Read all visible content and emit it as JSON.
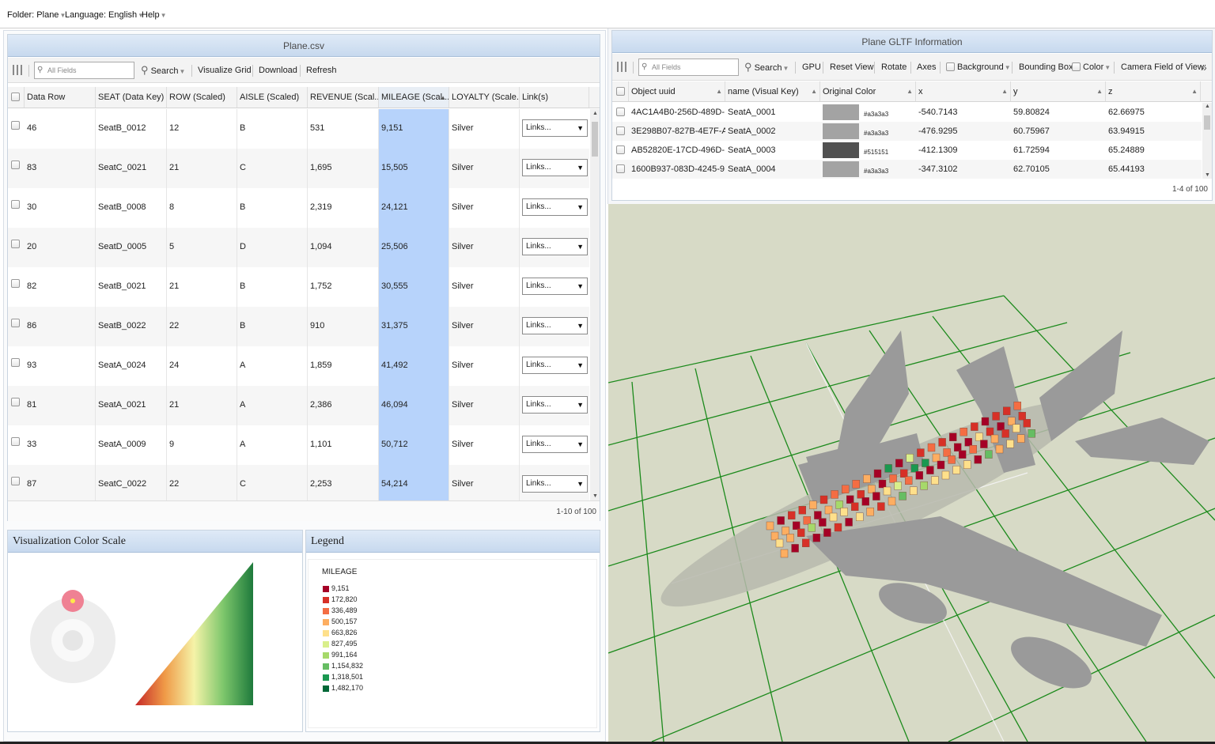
{
  "menubar": {
    "folder": "Folder: Plane",
    "language": "Language: English",
    "help": "Help"
  },
  "csv_panel": {
    "title": "Plane.csv",
    "toolbar": {
      "search_placeholder": "All Fields",
      "search": "Search",
      "visualize": "Visualize Grid",
      "download": "Download",
      "refresh": "Refresh"
    },
    "columns": [
      "Data Row",
      "SEAT (Data Key)",
      "ROW (Scaled)",
      "AISLE (Scaled)",
      "REVENUE (Scal...",
      "MILEAGE (Scal...",
      "LOYALTY (Scale...",
      "Link(s)"
    ],
    "rows": [
      {
        "data_row": "46",
        "seat": "SeatB_0012",
        "row": "12",
        "aisle": "B",
        "revenue": "531",
        "mileage": "9,151",
        "loyalty": "Silver",
        "links": "Links..."
      },
      {
        "data_row": "83",
        "seat": "SeatC_0021",
        "row": "21",
        "aisle": "C",
        "revenue": "1,695",
        "mileage": "15,505",
        "loyalty": "Silver",
        "links": "Links..."
      },
      {
        "data_row": "30",
        "seat": "SeatB_0008",
        "row": "8",
        "aisle": "B",
        "revenue": "2,319",
        "mileage": "24,121",
        "loyalty": "Silver",
        "links": "Links..."
      },
      {
        "data_row": "20",
        "seat": "SeatD_0005",
        "row": "5",
        "aisle": "D",
        "revenue": "1,094",
        "mileage": "25,506",
        "loyalty": "Silver",
        "links": "Links..."
      },
      {
        "data_row": "82",
        "seat": "SeatB_0021",
        "row": "21",
        "aisle": "B",
        "revenue": "1,752",
        "mileage": "30,555",
        "loyalty": "Silver",
        "links": "Links..."
      },
      {
        "data_row": "86",
        "seat": "SeatB_0022",
        "row": "22",
        "aisle": "B",
        "revenue": "910",
        "mileage": "31,375",
        "loyalty": "Silver",
        "links": "Links..."
      },
      {
        "data_row": "93",
        "seat": "SeatA_0024",
        "row": "24",
        "aisle": "A",
        "revenue": "1,859",
        "mileage": "41,492",
        "loyalty": "Silver",
        "links": "Links..."
      },
      {
        "data_row": "81",
        "seat": "SeatA_0021",
        "row": "21",
        "aisle": "A",
        "revenue": "2,386",
        "mileage": "46,094",
        "loyalty": "Silver",
        "links": "Links..."
      },
      {
        "data_row": "33",
        "seat": "SeatA_0009",
        "row": "9",
        "aisle": "A",
        "revenue": "1,101",
        "mileage": "50,712",
        "loyalty": "Silver",
        "links": "Links..."
      },
      {
        "data_row": "87",
        "seat": "SeatC_0022",
        "row": "22",
        "aisle": "C",
        "revenue": "2,253",
        "mileage": "54,214",
        "loyalty": "Silver",
        "links": "Links..."
      }
    ],
    "pager": "1-10 of 100"
  },
  "color_scale_panel": {
    "title": "Visualization Color Scale"
  },
  "legend_panel": {
    "title": "Legend",
    "field": "MILEAGE",
    "entries": [
      {
        "label": "9,151",
        "color": "#a50026"
      },
      {
        "label": "172,820",
        "color": "#d73027"
      },
      {
        "label": "336,489",
        "color": "#f46d43"
      },
      {
        "label": "500,157",
        "color": "#fdae61"
      },
      {
        "label": "663,826",
        "color": "#fee08b"
      },
      {
        "label": "827,495",
        "color": "#d9ef8b"
      },
      {
        "label": "991,164",
        "color": "#a6d96a"
      },
      {
        "label": "1,154,832",
        "color": "#66bd63"
      },
      {
        "label": "1,318,501",
        "color": "#1a9850"
      },
      {
        "label": "1,482,170",
        "color": "#006837"
      }
    ]
  },
  "gltf_panel": {
    "title": "Plane GLTF Information",
    "toolbar": {
      "search_placeholder": "All Fields",
      "search": "Search",
      "gpu": "GPU",
      "reset_view": "Reset View",
      "rotate": "Rotate",
      "axes": "Axes",
      "background": "Background",
      "bounding_box": "Bounding Box",
      "color": "Color",
      "camera": "Camera Field of View:"
    },
    "columns": [
      "Object uuid",
      "name (Visual Key)",
      "Original Color",
      "x",
      "y",
      "z"
    ],
    "rows": [
      {
        "uuid": "4AC1A4B0-256D-489D-...",
        "name": "SeatA_0001",
        "color": "#a3a3a3",
        "x": "-540.7143",
        "y": "59.80824",
        "z": "62.66975"
      },
      {
        "uuid": "3E298B07-827B-4E7F-A...",
        "name": "SeatA_0002",
        "color": "#a3a3a3",
        "x": "-476.9295",
        "y": "60.75967",
        "z": "63.94915"
      },
      {
        "uuid": "AB52820E-17CD-496D-...",
        "name": "SeatA_0003",
        "color": "#515151",
        "x": "-412.1309",
        "y": "61.72594",
        "z": "65.24889"
      },
      {
        "uuid": "1600B937-083D-4245-9...",
        "name": "SeatA_0004",
        "color": "#a3a3a3",
        "x": "-347.3102",
        "y": "62.70105",
        "z": "65.44193"
      }
    ],
    "pager": "1-4 of 100"
  }
}
